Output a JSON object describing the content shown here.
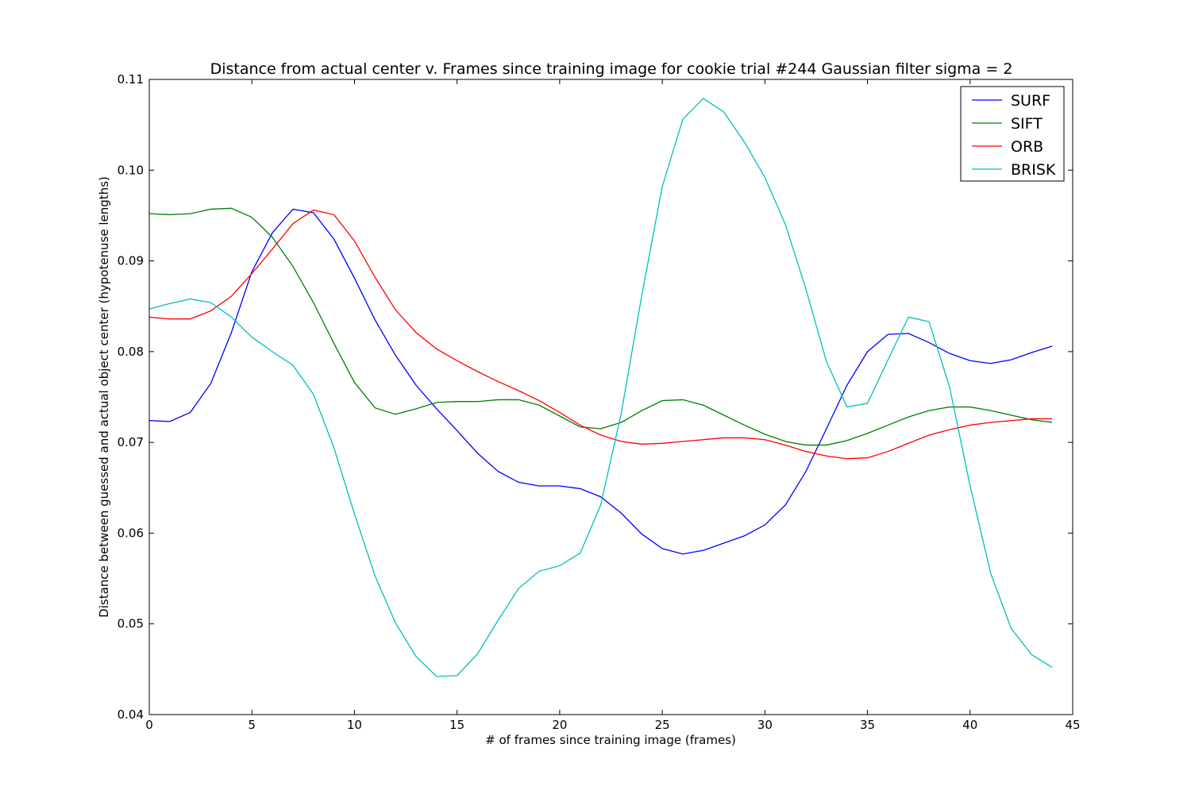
{
  "chart_data": {
    "type": "line",
    "title": "Distance from actual center v. Frames since training image for cookie trial #244 Gaussian filter sigma = 2",
    "xlabel": "# of frames since training image (frames)",
    "ylabel": "Distance between guessed and actual object center (hypotenuse lengths)",
    "xlim": [
      0,
      45
    ],
    "ylim": [
      0.04,
      0.11
    ],
    "xticks": [
      0,
      5,
      10,
      15,
      20,
      25,
      30,
      35,
      40,
      45
    ],
    "xtick_labels": [
      "0",
      "5",
      "10",
      "15",
      "20",
      "25",
      "30",
      "35",
      "40",
      "45"
    ],
    "yticks": [
      0.04,
      0.05,
      0.06,
      0.07,
      0.08,
      0.09,
      0.1,
      0.11
    ],
    "ytick_labels": [
      "0.04",
      "0.05",
      "0.06",
      "0.07",
      "0.08",
      "0.09",
      "0.10",
      "0.11"
    ],
    "grid": false,
    "legend_position": "top-right",
    "x": [
      0,
      1,
      2,
      3,
      4,
      5,
      6,
      7,
      8,
      9,
      10,
      11,
      12,
      13,
      14,
      15,
      16,
      17,
      18,
      19,
      20,
      21,
      22,
      23,
      24,
      25,
      26,
      27,
      28,
      29,
      30,
      31,
      32,
      33,
      34,
      35,
      36,
      37,
      38,
      39,
      40,
      41,
      42,
      43,
      44
    ],
    "series": [
      {
        "name": "SURF",
        "color": "#0000ff",
        "values": [
          0.0724,
          0.0723,
          0.0733,
          0.0765,
          0.0821,
          0.0888,
          0.0931,
          0.0957,
          0.0953,
          0.0924,
          0.0881,
          0.0835,
          0.0796,
          0.0763,
          0.0737,
          0.0713,
          0.0688,
          0.0668,
          0.0656,
          0.0652,
          0.0652,
          0.0649,
          0.064,
          0.0622,
          0.0599,
          0.0583,
          0.0577,
          0.0581,
          0.0589,
          0.0597,
          0.0609,
          0.0631,
          0.0668,
          0.0715,
          0.0763,
          0.08,
          0.0819,
          0.082,
          0.081,
          0.0798,
          0.079,
          0.0787,
          0.0791,
          0.0799,
          0.0806
        ]
      },
      {
        "name": "SIFT",
        "color": "#008000",
        "values": [
          0.0952,
          0.0951,
          0.0952,
          0.0957,
          0.0958,
          0.0948,
          0.0926,
          0.0894,
          0.0854,
          0.0809,
          0.0766,
          0.0738,
          0.0731,
          0.0737,
          0.0744,
          0.0745,
          0.0745,
          0.0747,
          0.0747,
          0.0741,
          0.0729,
          0.0717,
          0.0715,
          0.0722,
          0.0735,
          0.0746,
          0.0747,
          0.0741,
          0.073,
          0.0719,
          0.0709,
          0.0701,
          0.0697,
          0.0697,
          0.0702,
          0.071,
          0.0719,
          0.0728,
          0.0735,
          0.0739,
          0.0739,
          0.0735,
          0.073,
          0.0725,
          0.0722
        ]
      },
      {
        "name": "ORB",
        "color": "#ff0000",
        "values": [
          0.0838,
          0.0836,
          0.0836,
          0.0845,
          0.0861,
          0.0886,
          0.0913,
          0.0941,
          0.0956,
          0.0951,
          0.0922,
          0.0882,
          0.0846,
          0.0821,
          0.0803,
          0.079,
          0.0778,
          0.0767,
          0.0757,
          0.0746,
          0.0733,
          0.0719,
          0.0708,
          0.0701,
          0.0698,
          0.0699,
          0.0701,
          0.0703,
          0.0705,
          0.0705,
          0.0703,
          0.0697,
          0.069,
          0.0685,
          0.0682,
          0.0683,
          0.069,
          0.0699,
          0.0708,
          0.0714,
          0.0719,
          0.0722,
          0.0724,
          0.0726,
          0.0726
        ]
      },
      {
        "name": "BRISK",
        "color": "#00bfbf",
        "values": [
          0.0847,
          0.0853,
          0.0858,
          0.0854,
          0.0838,
          0.0816,
          0.08,
          0.0785,
          0.0753,
          0.0694,
          0.0621,
          0.0553,
          0.0501,
          0.0464,
          0.0442,
          0.0443,
          0.0467,
          0.0504,
          0.0539,
          0.0558,
          0.0564,
          0.0578,
          0.0631,
          0.0732,
          0.0862,
          0.0982,
          0.1056,
          0.1079,
          0.1064,
          0.1031,
          0.0992,
          0.094,
          0.0869,
          0.0789,
          0.0739,
          0.0743,
          0.0791,
          0.0838,
          0.0833,
          0.0761,
          0.0652,
          0.0556,
          0.0495,
          0.0466,
          0.0452
        ]
      }
    ]
  }
}
